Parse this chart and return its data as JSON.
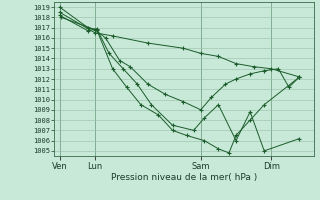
{
  "bg_color": "#c8e8d8",
  "grid_color": "#9abfaa",
  "line_color": "#1a5c2a",
  "marker_color": "#1a5c2a",
  "xlabel_text": "Pression niveau de la mer( hPa )",
  "ylim": [
    1004.5,
    1019.5
  ],
  "yticks": [
    1005,
    1006,
    1007,
    1008,
    1009,
    1010,
    1011,
    1012,
    1013,
    1014,
    1015,
    1016,
    1017,
    1018,
    1019
  ],
  "xtick_labels": [
    "Ven",
    "Lun",
    "Sam",
    "Dim"
  ],
  "xtick_positions": [
    0.0,
    1.0,
    4.0,
    6.0
  ],
  "xlim": [
    -0.15,
    7.2
  ],
  "series": [
    {
      "x": [
        0.0,
        1.0,
        1.5,
        2.5,
        3.5,
        4.0,
        4.5,
        5.0,
        5.5,
        6.0,
        6.8
      ],
      "y": [
        1018.5,
        1016.5,
        1016.2,
        1015.5,
        1015.0,
        1014.5,
        1014.2,
        1013.5,
        1013.2,
        1013.0,
        1012.2
      ]
    },
    {
      "x": [
        0.05,
        1.0,
        1.3,
        1.7,
        2.0,
        2.5,
        3.0,
        3.5,
        4.0,
        4.3,
        4.7,
        5.0,
        5.4,
        5.8,
        6.2,
        6.5,
        6.8
      ],
      "y": [
        1018.0,
        1016.8,
        1016.0,
        1013.8,
        1013.2,
        1011.5,
        1010.5,
        1009.8,
        1009.0,
        1010.2,
        1011.5,
        1012.0,
        1012.5,
        1012.8,
        1013.0,
        1011.2,
        1012.2
      ]
    },
    {
      "x": [
        0.0,
        0.8,
        1.05,
        1.4,
        1.8,
        2.2,
        2.6,
        3.2,
        3.8,
        4.1,
        4.5,
        5.0,
        5.4,
        5.8,
        6.8
      ],
      "y": [
        1018.2,
        1016.7,
        1016.9,
        1014.5,
        1013.0,
        1011.5,
        1009.5,
        1007.5,
        1007.0,
        1008.2,
        1009.5,
        1006.0,
        1008.8,
        1005.0,
        1006.2
      ]
    },
    {
      "x": [
        0.0,
        0.8,
        1.05,
        1.5,
        1.9,
        2.3,
        2.8,
        3.2,
        3.6,
        4.1,
        4.5,
        4.8,
        5.0,
        5.4,
        5.8,
        6.8
      ],
      "y": [
        1019.0,
        1017.0,
        1016.8,
        1013.0,
        1011.2,
        1009.5,
        1008.5,
        1007.0,
        1006.5,
        1006.0,
        1005.2,
        1004.8,
        1006.5,
        1008.0,
        1009.5,
        1012.2
      ]
    }
  ]
}
